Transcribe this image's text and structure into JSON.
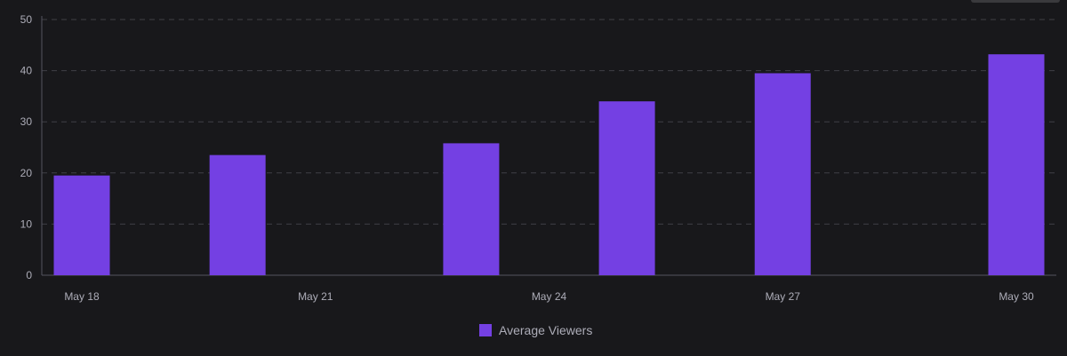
{
  "colors": {
    "background": "#18181b",
    "bar": "#7440e3",
    "grid": "#3f3f46",
    "axis": "#53535f",
    "text": "#adadb8"
  },
  "chart_data": {
    "type": "bar",
    "x": [
      "May 18",
      "May 20",
      "May 23",
      "May 25",
      "May 27",
      "May 30"
    ],
    "values": [
      19.5,
      23.5,
      25.8,
      34,
      39.5,
      43.2
    ],
    "xlim": [
      "May 18",
      "May 30"
    ],
    "x_ticks": [
      "May 18",
      "May 21",
      "May 24",
      "May 27",
      "May 30"
    ],
    "ylim": [
      0,
      50
    ],
    "y_ticks": [
      0,
      10,
      20,
      30,
      40,
      50
    ],
    "grid": true,
    "legend": {
      "position": "bottom-center",
      "entries": [
        {
          "label": "Average Viewers",
          "color": "#7440e3"
        }
      ]
    },
    "series": [
      {
        "name": "Average Viewers"
      }
    ]
  }
}
